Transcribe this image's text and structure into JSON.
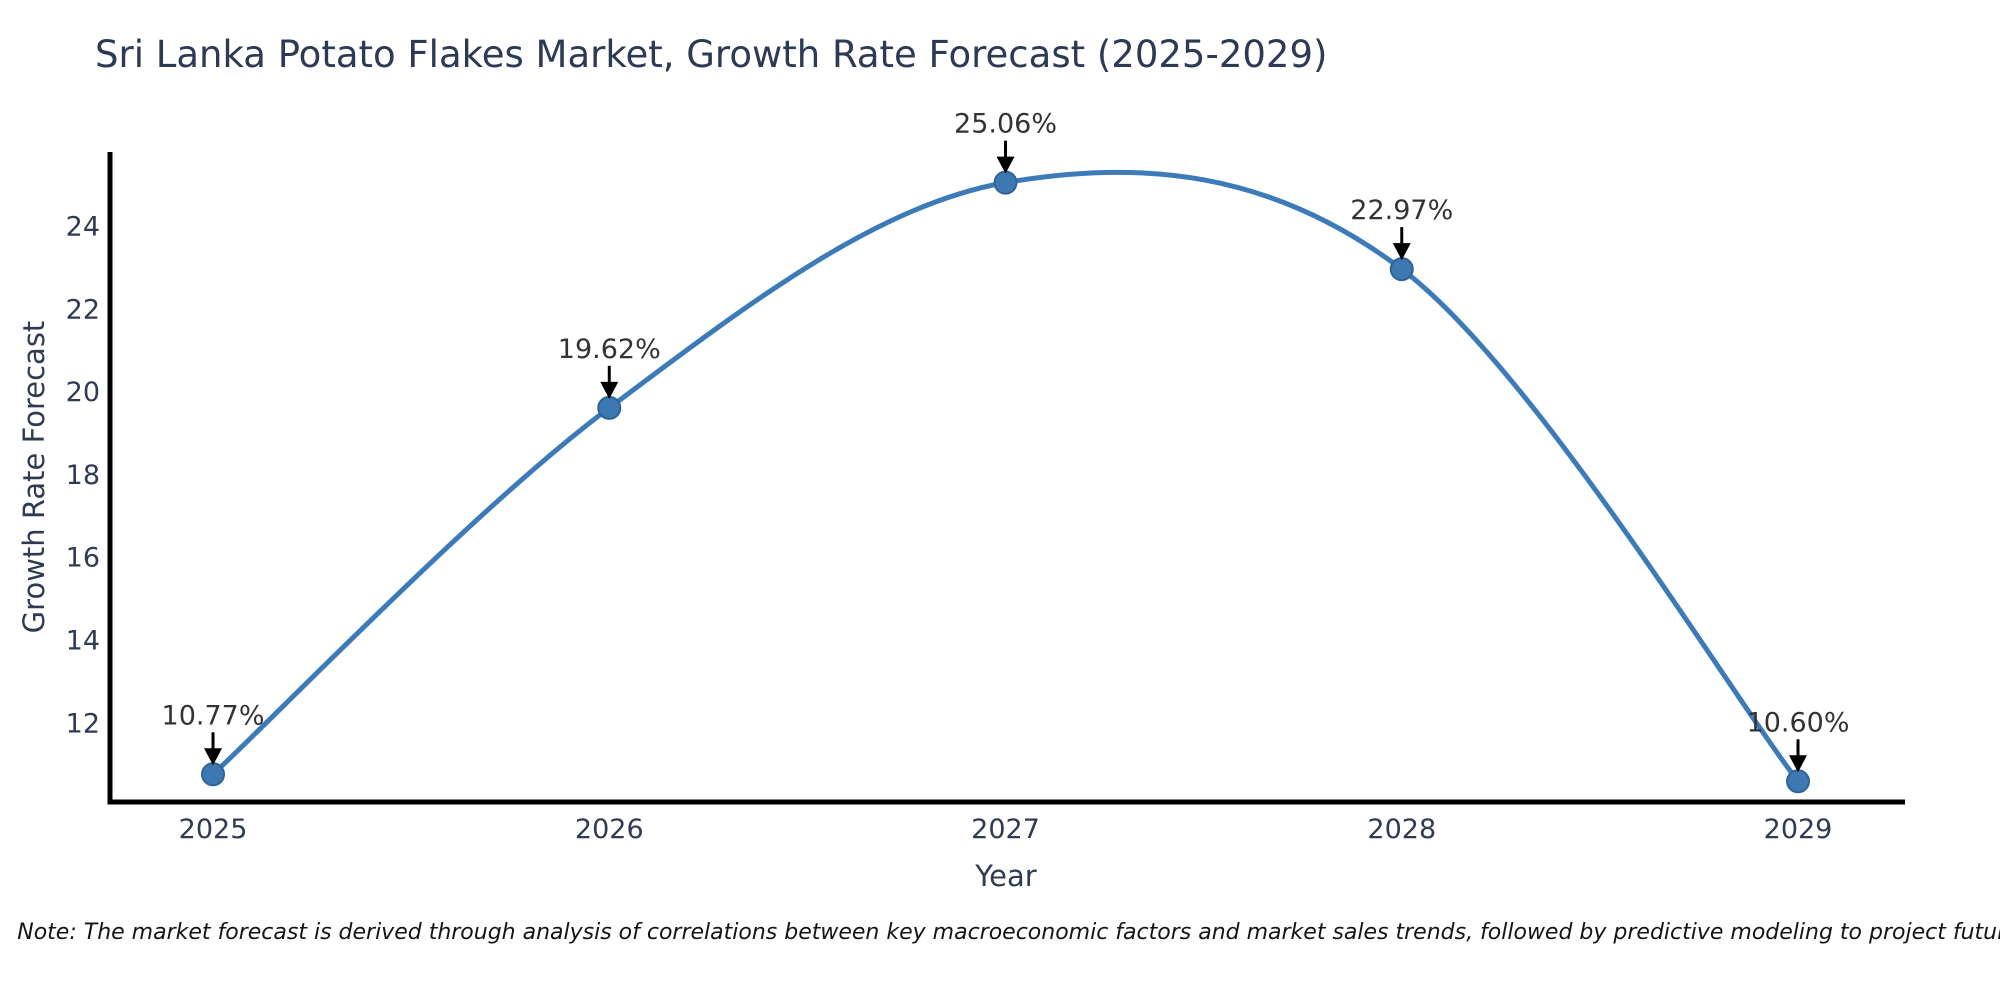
{
  "title": "Sri Lanka Potato Flakes Market, Growth Rate Forecast (2025-2029)",
  "note": "Note: The market forecast is derived through analysis of correlations between key macroeconomic factors and market sales trends, followed by predictive modeling to project future sales",
  "chart_data": {
    "type": "line",
    "title": "Sri Lanka Potato Flakes Market, Growth Rate Forecast (2025-2029)",
    "xlabel": "Year",
    "ylabel": "Growth Rate Forecast",
    "x": [
      2025,
      2026,
      2027,
      2028,
      2029
    ],
    "values": [
      10.77,
      19.62,
      25.06,
      22.97,
      10.6
    ],
    "point_labels": [
      "10.77%",
      "19.62%",
      "25.06%",
      "22.97%",
      "10.60%"
    ],
    "xticks": [
      "2025",
      "2026",
      "2027",
      "2028",
      "2029"
    ],
    "yticks": [
      12,
      14,
      16,
      18,
      20,
      22,
      24
    ],
    "xlim": [
      2024.74,
      2029.27
    ],
    "ylim": [
      10.1,
      25.8
    ],
    "grid": false,
    "legend": false,
    "curve": "smooth-spline",
    "annotation_style": "label-above-with-down-arrow",
    "colors": {
      "line": "#3d7bb8",
      "marker_fill": "#3d78b2",
      "marker_edge": "#2f6396",
      "arrow": "#000000",
      "axis_spine": "#000000",
      "title_text": "#2d3a55",
      "tick_text": "#2e3b52",
      "point_label_text": "#333333",
      "note_text": "#141414",
      "background": "#ffffff"
    }
  }
}
